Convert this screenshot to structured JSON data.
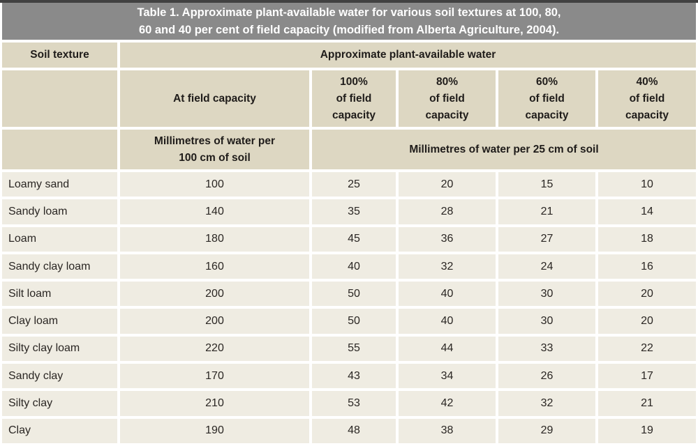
{
  "title": "Table 1. Approximate plant-available water for various soil textures at 100, 80,\n60 and 40 per cent of field capacity (modified from Alberta Agriculture, 2004).",
  "colors": {
    "title_bar": "#8a8a8a",
    "title_text": "#ffffff",
    "top_rule": "#414141",
    "header_cell": "#ddd7c2",
    "data_cell": "#efece2",
    "grid_gap": "#ffffff",
    "text": "#2a2623"
  },
  "table": {
    "corner_header": "Soil texture",
    "group_header": "Approximate plant-available water",
    "at_field_capacity_header": "At field capacity",
    "percent_headers": [
      "100%\nof field\ncapacity",
      "80%\nof field\ncapacity",
      "60%\nof field\ncapacity",
      "40%\nof field\ncapacity"
    ],
    "unit_header_field_capacity": "Millimetres of water per\n100 cm of soil",
    "unit_header_percent": "Millimetres of water per 25 cm of soil",
    "rows": [
      {
        "texture": "Loamy sand",
        "at_fc": "100",
        "v": [
          "25",
          "20",
          "15",
          "10"
        ]
      },
      {
        "texture": "Sandy loam",
        "at_fc": "140",
        "v": [
          "35",
          "28",
          "21",
          "14"
        ]
      },
      {
        "texture": "Loam",
        "at_fc": "180",
        "v": [
          "45",
          "36",
          "27",
          "18"
        ]
      },
      {
        "texture": "Sandy clay loam",
        "at_fc": "160",
        "v": [
          "40",
          "32",
          "24",
          "16"
        ]
      },
      {
        "texture": "Silt loam",
        "at_fc": "200",
        "v": [
          "50",
          "40",
          "30",
          "20"
        ]
      },
      {
        "texture": "Clay loam",
        "at_fc": "200",
        "v": [
          "50",
          "40",
          "30",
          "20"
        ]
      },
      {
        "texture": "Silty clay loam",
        "at_fc": "220",
        "v": [
          "55",
          "44",
          "33",
          "22"
        ]
      },
      {
        "texture": "Sandy clay",
        "at_fc": "170",
        "v": [
          "43",
          "34",
          "26",
          "17"
        ]
      },
      {
        "texture": "Silty clay",
        "at_fc": "210",
        "v": [
          "53",
          "42",
          "32",
          "21"
        ]
      },
      {
        "texture": "Clay",
        "at_fc": "190",
        "v": [
          "48",
          "38",
          "29",
          "19"
        ]
      }
    ]
  }
}
